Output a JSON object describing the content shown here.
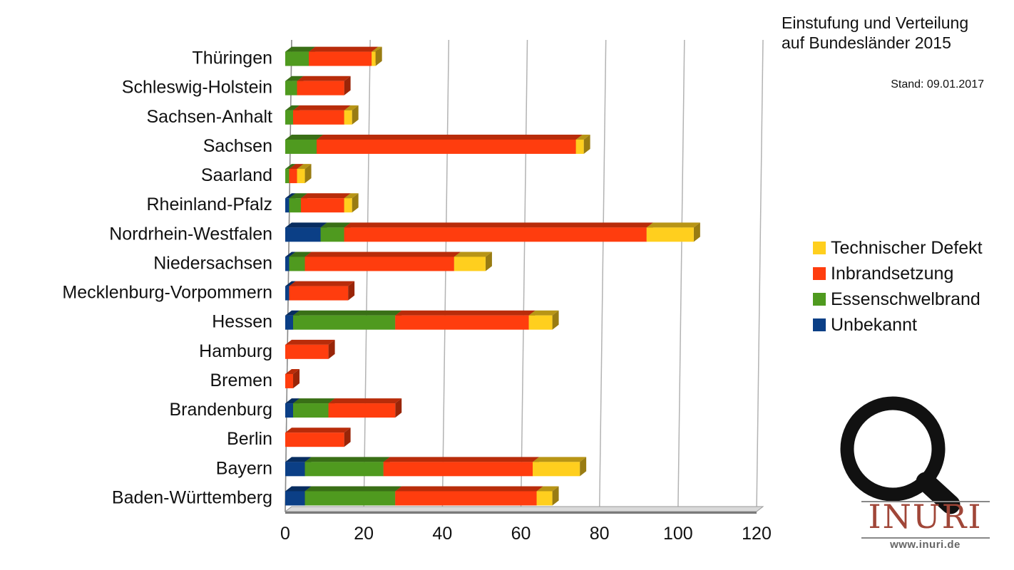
{
  "chart_data": {
    "type": "bar",
    "orientation": "horizontal",
    "stacked": true,
    "title_lines": [
      "Einstufung und Verteilung",
      "auf Bundesländer 2015"
    ],
    "subtitle": "Stand: 09.01.2017",
    "categories": [
      "Baden-Württemberg",
      "Bayern",
      "Berlin",
      "Brandenburg",
      "Bremen",
      "Hamburg",
      "Hessen",
      "Mecklenburg-Vorpommern",
      "Niedersachsen",
      "Nordrhein-Westfalen",
      "Rheinland-Pfalz",
      "Saarland",
      "Sachsen",
      "Sachsen-Anhalt",
      "Schleswig-Holstein",
      "Thüringen"
    ],
    "series": [
      {
        "name": "Unbekannt",
        "color": "#0b3f86",
        "values": [
          5,
          5,
          0,
          2,
          0,
          0,
          2,
          1,
          1,
          9,
          1,
          0,
          0,
          0,
          0,
          0
        ]
      },
      {
        "name": "Essenschwelbrand",
        "color": "#4f9a1f",
        "values": [
          23,
          20,
          0,
          9,
          0,
          0,
          26,
          0,
          4,
          6,
          3,
          1,
          8,
          2,
          3,
          6
        ]
      },
      {
        "name": "Inbrandsetzung",
        "color": "#ff3d0e",
        "values": [
          36,
          38,
          15,
          17,
          2,
          11,
          34,
          15,
          38,
          77,
          11,
          2,
          66,
          13,
          12,
          16
        ]
      },
      {
        "name": "Technischer Defekt",
        "color": "#ffcf1e",
        "values": [
          4,
          12,
          0,
          0,
          0,
          0,
          6,
          0,
          8,
          12,
          2,
          2,
          2,
          2,
          0,
          1
        ]
      }
    ],
    "legend_order": [
      "Technischer Defekt",
      "Inbrandsetzung",
      "Essenschwelbrand",
      "Unbekannt"
    ],
    "xlim": [
      0,
      120
    ],
    "xticks": [
      0,
      20,
      40,
      60,
      80,
      100,
      120
    ],
    "grid": true,
    "legend_position": "right"
  },
  "logo": {
    "icon": "magnifier-icon",
    "text": "INURI",
    "url": "www.inuri.de"
  }
}
